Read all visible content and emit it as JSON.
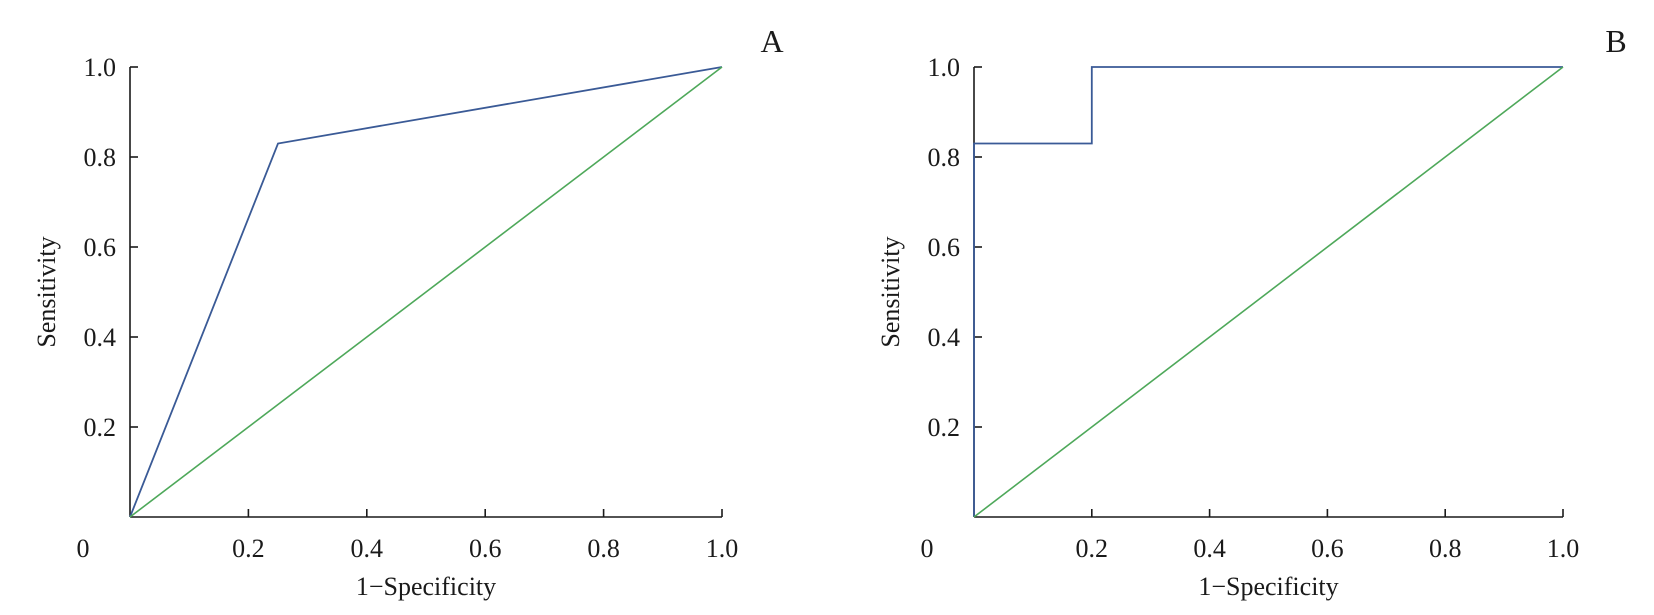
{
  "chart_data": [
    {
      "type": "line",
      "panel_label": "A",
      "xlabel": "1−Specificity",
      "ylabel": "Sensitivity",
      "xlim": [
        0,
        1
      ],
      "ylim": [
        0,
        1
      ],
      "x_ticks": [
        "0",
        "0.2",
        "0.4",
        "0.6",
        "0.8",
        "1.0"
      ],
      "x_tick_values": [
        0,
        0.2,
        0.4,
        0.6,
        0.8,
        1.0
      ],
      "y_ticks": [
        "0.2",
        "0.4",
        "0.6",
        "0.8",
        "1.0"
      ],
      "y_tick_values": [
        0.2,
        0.4,
        0.6,
        0.8,
        1.0
      ],
      "grid": false,
      "series": [
        {
          "color": "#3a5a96",
          "x": [
            0,
            0.25,
            1.0
          ],
          "y": [
            0,
            0.83,
            1.0
          ]
        },
        {
          "color": "#4ea85a",
          "x": [
            0,
            1.0
          ],
          "y": [
            0,
            1.0
          ]
        }
      ]
    },
    {
      "type": "line",
      "panel_label": "B",
      "xlabel": "1−Specificity",
      "ylabel": "Sensitivity",
      "xlim": [
        0,
        1
      ],
      "ylim": [
        0,
        1
      ],
      "x_ticks": [
        "0",
        "0.2",
        "0.4",
        "0.6",
        "0.8",
        "1.0"
      ],
      "x_tick_values": [
        0,
        0.2,
        0.4,
        0.6,
        0.8,
        1.0
      ],
      "y_ticks": [
        "0.2",
        "0.4",
        "0.6",
        "0.8",
        "1.0"
      ],
      "y_tick_values": [
        0.2,
        0.4,
        0.6,
        0.8,
        1.0
      ],
      "grid": false,
      "series": [
        {
          "color": "#3a5a96",
          "x": [
            0,
            0,
            0.2,
            0.2,
            1.0
          ],
          "y": [
            0,
            0.83,
            0.83,
            1.0,
            1.0
          ]
        },
        {
          "color": "#4ea85a",
          "x": [
            0,
            1.0
          ],
          "y": [
            0,
            1.0
          ]
        }
      ]
    }
  ]
}
